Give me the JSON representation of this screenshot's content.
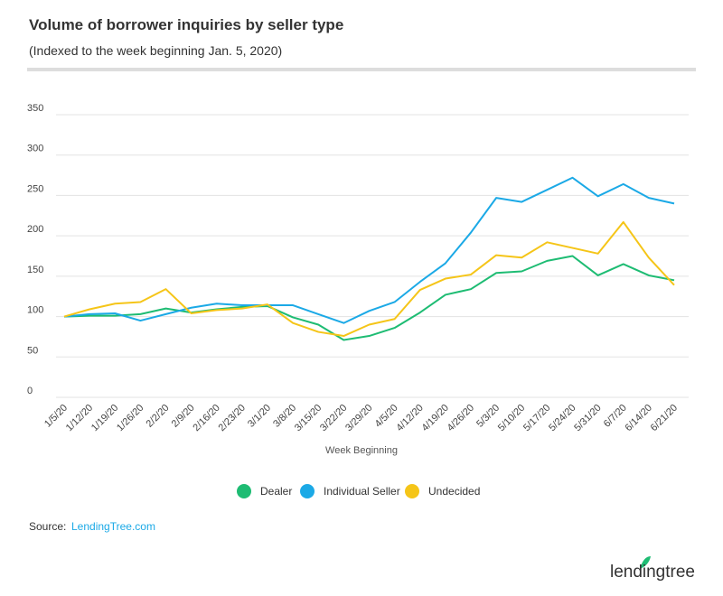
{
  "chart_data": {
    "type": "line",
    "title": "Volume of borrower inquiries by seller type",
    "subtitle": "(Indexed to the week beginning Jan. 5, 2020)",
    "x_label": "Week Beginning",
    "categories": [
      "1/5/20",
      "1/12/20",
      "1/19/20",
      "1/26/20",
      "2/2/20",
      "2/9/20",
      "2/16/20",
      "2/23/20",
      "3/1/20",
      "3/8/20",
      "3/15/20",
      "3/22/20",
      "3/29/20",
      "4/5/20",
      "4/12/20",
      "4/19/20",
      "4/26/20",
      "5/3/20",
      "5/10/20",
      "5/17/20",
      "5/24/20",
      "5/31/20",
      "6/7/20",
      "6/14/20",
      "6/21/20"
    ],
    "series": [
      {
        "name": "Dealer",
        "color": "#1ebc73",
        "values": [
          100,
          101,
          101,
          103,
          110,
          105,
          109,
          112,
          113,
          99,
          90,
          71,
          76,
          86,
          105,
          127,
          134,
          154,
          156,
          169,
          175,
          151,
          165,
          151,
          145
        ]
      },
      {
        "name": "Individual Seller",
        "color": "#1ba9e6",
        "values": [
          100,
          103,
          104,
          95,
          103,
          111,
          116,
          114,
          114,
          114,
          103,
          92,
          107,
          118,
          143,
          166,
          204,
          247,
          242,
          257,
          272,
          249,
          264,
          247,
          240
        ]
      },
      {
        "name": "Undecided",
        "color": "#f5c518",
        "values": [
          100,
          109,
          116,
          118,
          134,
          104,
          108,
          110,
          115,
          92,
          81,
          76,
          90,
          97,
          133,
          147,
          152,
          176,
          173,
          192,
          185,
          178,
          217,
          173,
          139
        ]
      }
    ],
    "ylim": [
      0,
      350
    ],
    "yticks": [
      0,
      50,
      100,
      150,
      200,
      250,
      300,
      350
    ],
    "grid": true
  },
  "source": {
    "label": "Source:",
    "link": "LendingTree.com"
  },
  "logo": "lendingtree"
}
